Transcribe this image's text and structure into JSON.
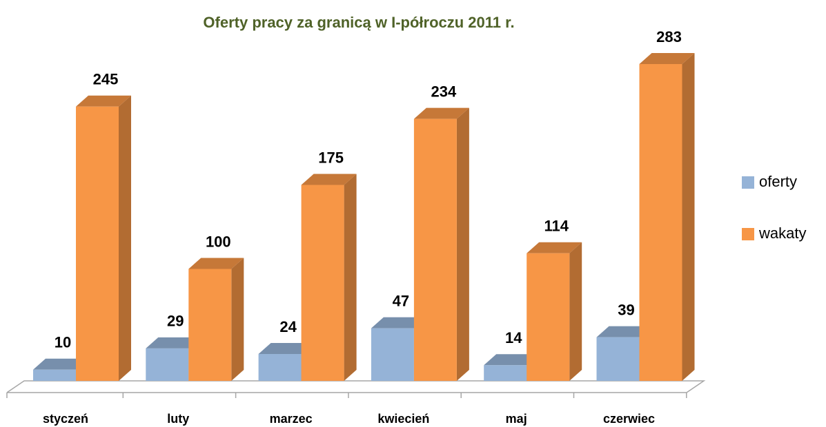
{
  "chart_data": {
    "type": "bar3d",
    "title": "Oferty pracy za granicą w I-półroczu 2011 r.",
    "categories": [
      "styczeń",
      "luty",
      "marzec",
      "kwiecień",
      "maj",
      "czerwiec"
    ],
    "series": [
      {
        "name": "oferty",
        "color": "#95b3d7",
        "values": [
          10,
          29,
          24,
          47,
          14,
          39
        ]
      },
      {
        "name": "wakaty",
        "color": "#f79646",
        "values": [
          245,
          100,
          175,
          234,
          114,
          283
        ]
      }
    ],
    "legend": "right"
  }
}
